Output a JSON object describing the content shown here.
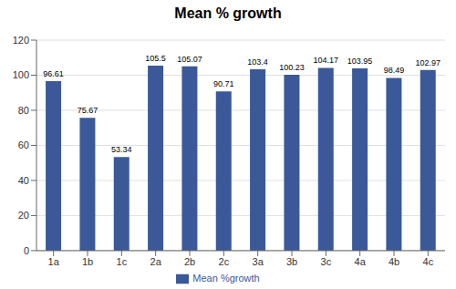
{
  "chart_data": {
    "type": "bar",
    "title": "Mean % growth",
    "categories": [
      "1a",
      "1b",
      "1c",
      "2a",
      "2b",
      "2c",
      "3a",
      "3b",
      "3c",
      "4a",
      "4b",
      "4c"
    ],
    "series": [
      {
        "name": "Mean %growth",
        "color": "#3B5998",
        "values": [
          96.61,
          75.67,
          53.34,
          105.5,
          105.07,
          90.71,
          103.4,
          100.23,
          104.17,
          103.95,
          98.49,
          102.97
        ]
      }
    ],
    "ylim": [
      0,
      120
    ],
    "yticks": [
      0,
      20,
      40,
      60,
      80,
      100,
      120
    ],
    "grid": true,
    "legend": "bottom",
    "data_labels": true
  }
}
